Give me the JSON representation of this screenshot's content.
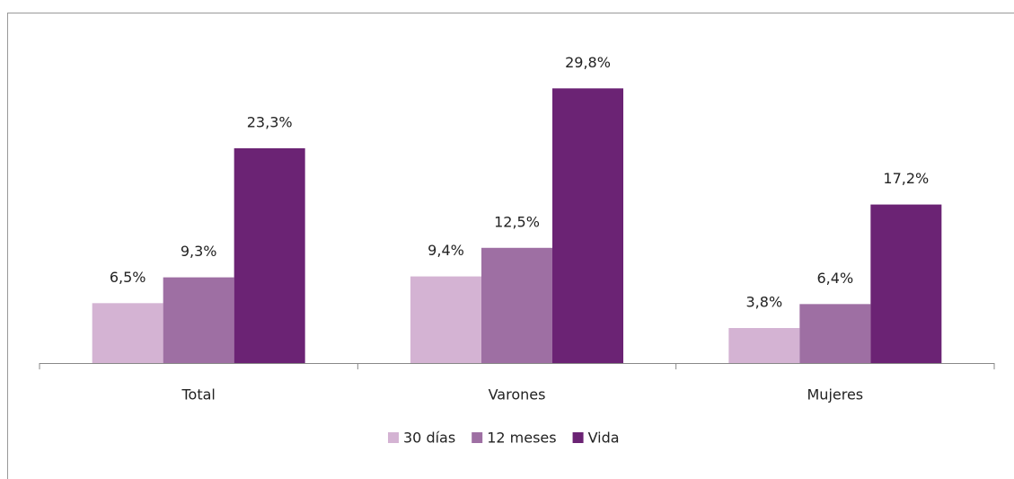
{
  "chart_data": {
    "type": "bar",
    "categories": [
      "Total",
      "Varones",
      "Mujeres"
    ],
    "series": [
      {
        "name": "30 días",
        "color": "#d4b3d3",
        "values": [
          6.5,
          9.4,
          3.8
        ],
        "value_labels": [
          "6,5%",
          "9,4%",
          "3,8%"
        ]
      },
      {
        "name": "12 meses",
        "color": "#9e6fa3",
        "values": [
          9.3,
          12.5,
          6.4
        ],
        "value_labels": [
          "9,3%",
          "12,5%",
          "6,4%"
        ]
      },
      {
        "name": "Vida",
        "color": "#6b2374",
        "values": [
          23.3,
          29.8,
          17.2
        ],
        "value_labels": [
          "23,3%",
          "29,8%",
          "17,2%"
        ]
      }
    ],
    "ylim": [
      0,
      35
    ],
    "legend": "bottom"
  }
}
